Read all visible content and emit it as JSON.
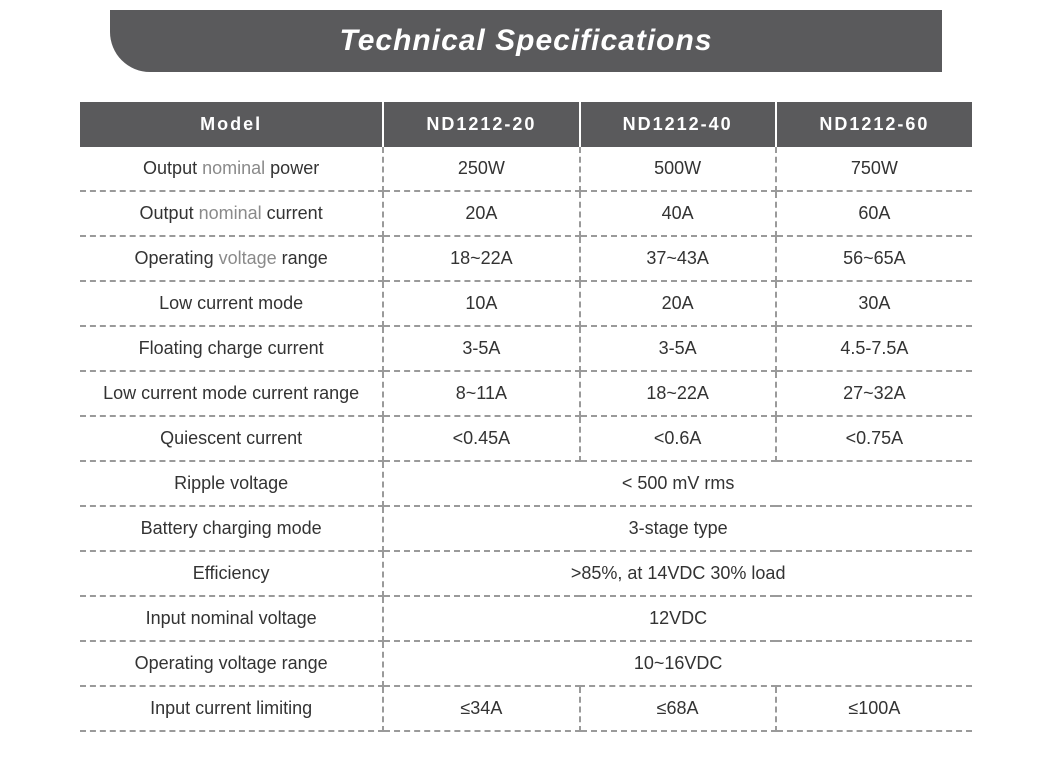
{
  "title": "Technical Specifications",
  "header": {
    "col0": "Model",
    "col1": "ND1212-20",
    "col2": "ND1212-40",
    "col3": "ND1212-60"
  },
  "rows": {
    "r1": {
      "label_a": "Output",
      "label_b": "nominal",
      "label_c": "power",
      "v1": "250W",
      "v2": "500W",
      "v3": "750W"
    },
    "r2": {
      "label_a": "Output",
      "label_b": "nominal",
      "label_c": "current",
      "v1": "20A",
      "v2": "40A",
      "v3": "60A"
    },
    "r3": {
      "label_a": "Operating",
      "label_b": "voltage",
      "label_c": "range",
      "v1": "18~22A",
      "v2": "37~43A",
      "v3": "56~65A"
    },
    "r4": {
      "label": "Low current mode",
      "v1": "10A",
      "v2": "20A",
      "v3": "30A"
    },
    "r5": {
      "label": "Floating charge current",
      "v1": "3-5A",
      "v2": "3-5A",
      "v3": "4.5-7.5A"
    },
    "r6": {
      "label": "Low current mode current range",
      "v1": "8~11A",
      "v2": "18~22A",
      "v3": "27~32A"
    },
    "r7": {
      "label": "Quiescent current",
      "v1": "<0.45A",
      "v2": "<0.6A",
      "v3": "<0.75A"
    },
    "r8": {
      "label": "Ripple voltage",
      "v": "< 500 mV rms"
    },
    "r9": {
      "label": "Battery charging mode",
      "v": "3-stage type"
    },
    "r10": {
      "label": "Efficiency",
      "v": ">85%, at 14VDC 30% load"
    },
    "r11": {
      "label": "Input nominal voltage",
      "v": "12VDC"
    },
    "r12": {
      "label": "Operating voltage range",
      "v": "10~16VDC"
    },
    "r13": {
      "label": "Input current limiting",
      "v1": "≤34A",
      "v2": "≤68A",
      "v3": "≤100A"
    }
  },
  "styling": {
    "title_bg": "#5a5a5c",
    "title_color": "#ffffff",
    "header_bg": "#5a5a5c",
    "header_color": "#ffffff",
    "border_style": "dashed",
    "border_color": "#9a9a9a",
    "text_dark": "#333333",
    "text_muted": "#8a8a8a",
    "body_bg": "#ffffff",
    "title_fontsize": 30,
    "cell_fontsize": 18,
    "header_letter_spacing": 2,
    "title_border_radius_bl": 40
  }
}
